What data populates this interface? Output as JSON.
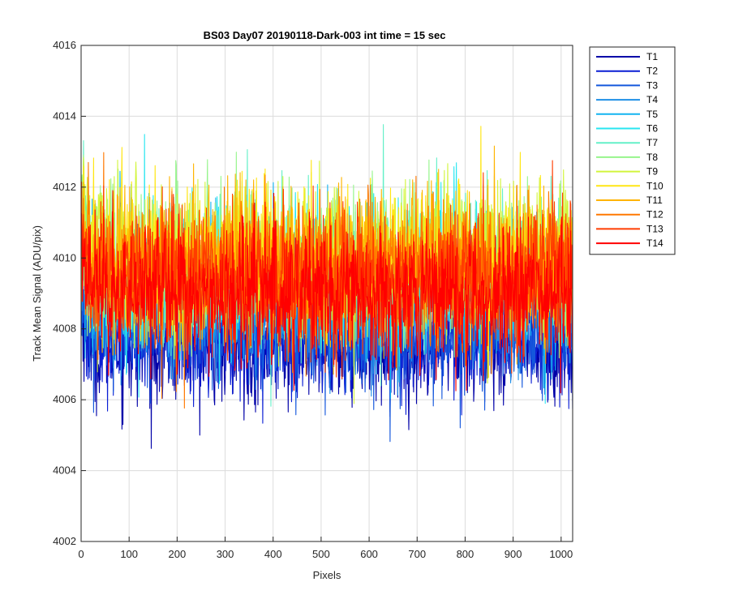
{
  "chart_data": {
    "type": "line",
    "title": "BS03 Day07 20190118-Dark-003 int time = 15 sec",
    "xlabel": "Pixels",
    "ylabel": "Track Mean Signal (ADU/pix)",
    "xlim": [
      0,
      1024
    ],
    "ylim": [
      4002,
      4016
    ],
    "xticks": [
      0,
      100,
      200,
      300,
      400,
      500,
      600,
      700,
      800,
      900,
      1000
    ],
    "yticks": [
      4002,
      4004,
      4006,
      4008,
      4010,
      4012,
      4014,
      4016
    ],
    "grid": true,
    "legend_position": "outside-top-right",
    "n_points": 1024,
    "note_values": "Dense per-pixel noise traces; each series summarized by approximate mean and standard deviation read from the figure",
    "series": [
      {
        "name": "T1",
        "color": "#0000a8",
        "mean": 4007.6,
        "std": 0.85
      },
      {
        "name": "T2",
        "color": "#0a1ed4",
        "mean": 4007.8,
        "std": 0.8
      },
      {
        "name": "T3",
        "color": "#1457dc",
        "mean": 4008.0,
        "std": 0.8
      },
      {
        "name": "T4",
        "color": "#1e8fe6",
        "mean": 4008.6,
        "std": 0.85
      },
      {
        "name": "T5",
        "color": "#14b4f0",
        "mean": 4009.2,
        "std": 0.95
      },
      {
        "name": "T6",
        "color": "#28e6f0",
        "mean": 4009.6,
        "std": 1.0
      },
      {
        "name": "T7",
        "color": "#64f0c8",
        "mean": 4009.7,
        "std": 1.0
      },
      {
        "name": "T8",
        "color": "#96f58c",
        "mean": 4009.8,
        "std": 1.0
      },
      {
        "name": "T9",
        "color": "#d2f53c",
        "mean": 4010.0,
        "std": 1.0
      },
      {
        "name": "T10",
        "color": "#ffe614",
        "mean": 4010.0,
        "std": 1.0
      },
      {
        "name": "T11",
        "color": "#ffb400",
        "mean": 4009.8,
        "std": 1.0
      },
      {
        "name": "T12",
        "color": "#ff7800",
        "mean": 4009.6,
        "std": 1.0
      },
      {
        "name": "T13",
        "color": "#ff3c00",
        "mean": 4009.4,
        "std": 1.0
      },
      {
        "name": "T14",
        "color": "#ff0000",
        "mean": 4009.0,
        "std": 0.95
      }
    ]
  }
}
